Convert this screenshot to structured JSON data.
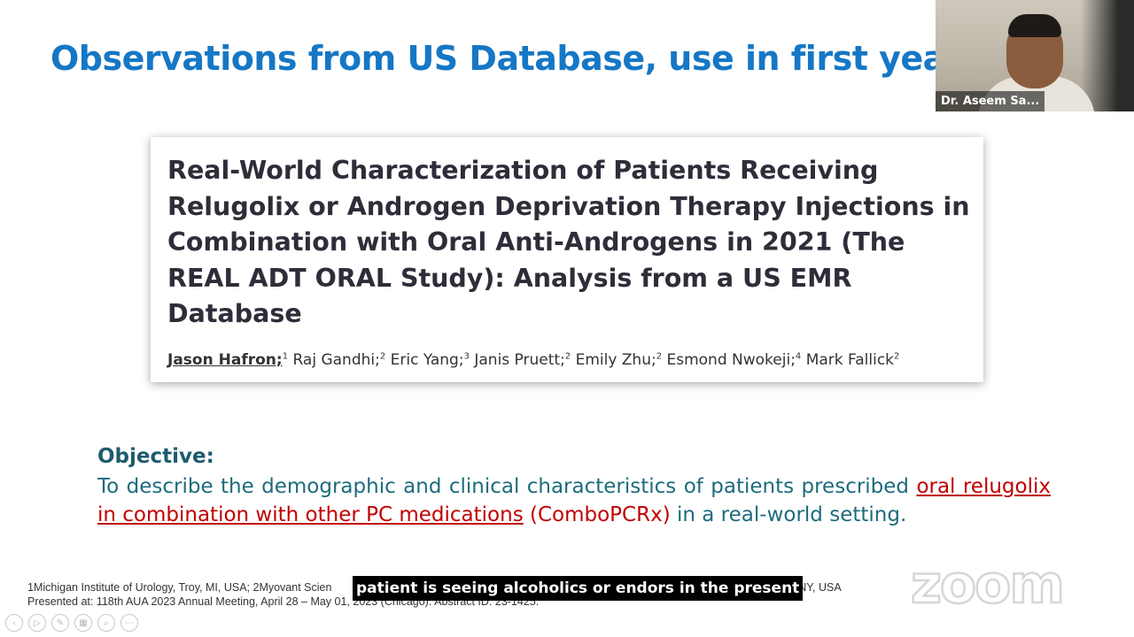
{
  "slide": {
    "title": "Observations from US Database, use in first year o"
  },
  "video": {
    "participant_name": "Dr. Aseem Sa..."
  },
  "paper": {
    "title": "Real-World Characterization of Patients Receiving Relugolix or Androgen Deprivation Therapy Injections in Combination with Oral Anti-Androgens in 2021 (The REAL ADT ORAL Study): Analysis from a US EMR Database",
    "authors": [
      {
        "name": "Jason Hafron;",
        "sup": "1"
      },
      {
        "name": " Raj Gandhi;",
        "sup": "2"
      },
      {
        "name": " Eric Yang;",
        "sup": "3"
      },
      {
        "name": " Janis Pruett;",
        "sup": "2"
      },
      {
        "name": " Emily Zhu;",
        "sup": "2"
      },
      {
        "name": " Esmond Nwokeji;",
        "sup": "4"
      },
      {
        "name": " Mark Fallick",
        "sup": "2"
      }
    ]
  },
  "objective": {
    "heading": "Objective:",
    "text_before": "To describe the demographic and clinical characteristics of patients prescribed ",
    "highlight": "oral relugolix in combination with other PC medications",
    "combo": "(ComboPCRx)",
    "text_after": " in a real-world setting."
  },
  "footnote": {
    "line1": "1Michigan Institute of Urology, Troy, MI, USA; 2Myovant Scien",
    "line1_end": "Inc., New York, NY, USA",
    "line2": "Presented at: 118th AUA 2023 Annual Meeting, April 28 – May 01, 2023 (Chicago). Abstract ID: 23-1425."
  },
  "caption": {
    "text": "patient is seeing alcoholics or endors in the present"
  },
  "branding": {
    "zoom_logo": "zoom"
  },
  "controls": [
    {
      "icon": "prev-arrow-icon",
      "glyph": "‹"
    },
    {
      "icon": "play-icon",
      "glyph": "▷"
    },
    {
      "icon": "pen-icon",
      "glyph": "✎"
    },
    {
      "icon": "slides-icon",
      "glyph": "▦"
    },
    {
      "icon": "zoom-icon",
      "glyph": "⌕"
    },
    {
      "icon": "more-icon",
      "glyph": "⋯"
    }
  ],
  "colors": {
    "title_blue": "#1677c5",
    "objective_teal": "#1d6c7c",
    "highlight_red": "#c00000"
  }
}
